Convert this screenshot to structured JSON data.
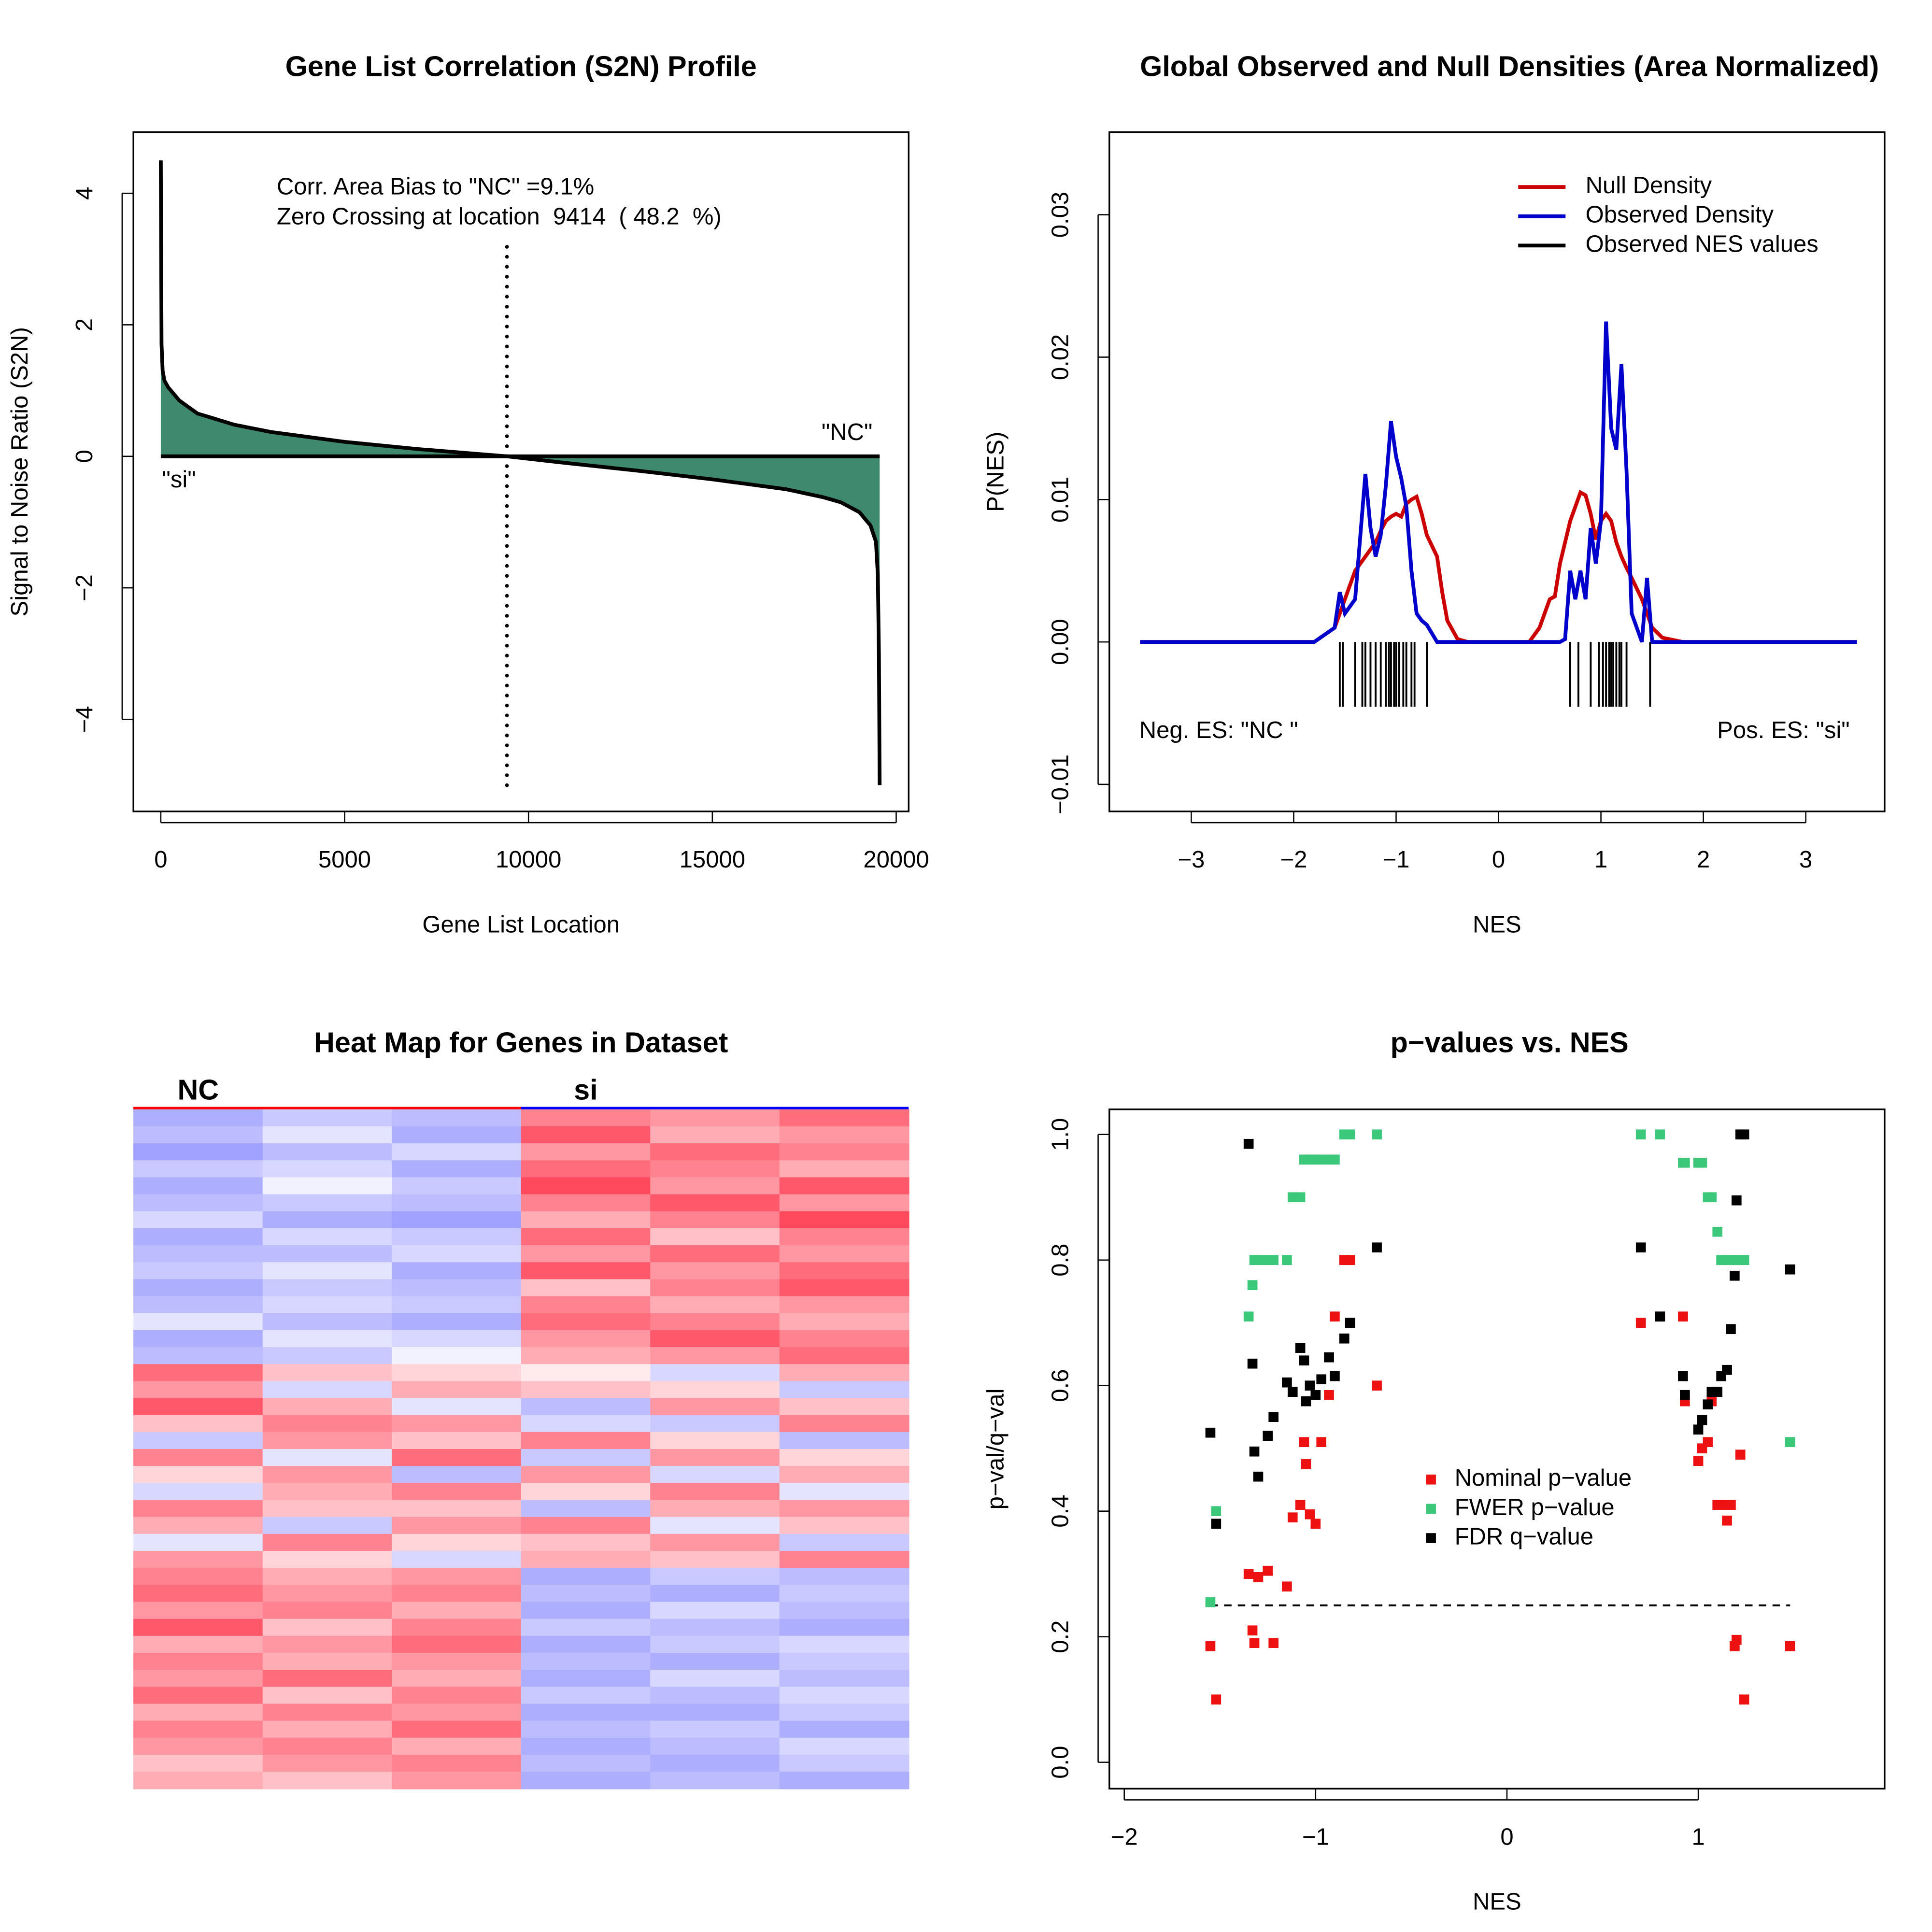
{
  "chart_data": [
    {
      "type": "area",
      "title": "Gene List Correlation (S2N) Profile",
      "x_label": "Gene List Location",
      "y_label": "Signal to Noise Ratio (S2N)",
      "annotations": [
        "Corr. Area Bias to \"NC\" =9.1%",
        "Zero Crossing at location  9414  ( 48.2  %)",
        "\"si\"",
        "\"NC\""
      ],
      "zero_crossing": 9414,
      "color": "#3f8a6e",
      "x": [
        0,
        20,
        50,
        100,
        200,
        500,
        1000,
        1300,
        2000,
        3000,
        5000,
        7000,
        9414,
        11000,
        13000,
        15000,
        17000,
        18000,
        18500,
        19000,
        19300,
        19450,
        19500,
        19530,
        19550
      ],
      "values": [
        4.5,
        1.7,
        1.3,
        1.15,
        1.05,
        0.85,
        0.65,
        0.6,
        0.48,
        0.37,
        0.22,
        0.11,
        0,
        -0.1,
        -0.22,
        -0.35,
        -0.5,
        -0.62,
        -0.7,
        -0.85,
        -1.05,
        -1.3,
        -1.8,
        -3,
        -5
      ],
      "xlim": [
        -746,
        20339
      ],
      "ylim": [
        -5.4,
        4.93
      ],
      "xticks": [
        0,
        5000,
        10000,
        15000,
        20000
      ],
      "yticks": [
        {
          "value": -4,
          "label": "−4"
        },
        {
          "value": -2,
          "label": "−2"
        },
        0,
        2,
        4
      ]
    },
    {
      "type": "line",
      "title": "Global Observed and Null Densities (Area Normalized)",
      "x_label": "NES",
      "y_label": "P(NES)",
      "annotations": [
        "Neg. ES: \"NC \"",
        "Pos. ES: \"si\""
      ],
      "x": [
        -3.5,
        -1.8,
        -1.6,
        -1.55,
        -1.5,
        -1.4,
        -1.3,
        -1.25,
        -1.2,
        -1.15,
        -1.1,
        -1.05,
        -1.0,
        -0.95,
        -0.9,
        -0.85,
        -0.8,
        -0.75,
        -0.7,
        -0.6,
        -0.55,
        -0.5,
        -0.4,
        -0.3,
        0.3,
        0.4,
        0.5,
        0.55,
        0.6,
        0.65,
        0.7,
        0.75,
        0.8,
        0.85,
        0.9,
        0.95,
        1.0,
        1.05,
        1.1,
        1.15,
        1.2,
        1.25,
        1.3,
        1.4,
        1.45,
        1.5,
        1.6,
        1.8,
        3.5
      ],
      "series": [
        {
          "name": "Null Density",
          "color": "#cc0000",
          "values": [
            0,
            0,
            0.001,
            0.002,
            0.003,
            0.005,
            0.006,
            0.0065,
            0.007,
            0.0078,
            0.0085,
            0.0088,
            0.009,
            0.0088,
            0.0097,
            0.01,
            0.0102,
            0.009,
            0.0075,
            0.006,
            0.0035,
            0.0015,
            0.0002,
            0,
            0,
            0.001,
            0.003,
            0.0032,
            0.0055,
            0.007,
            0.0085,
            0.0095,
            0.0105,
            0.0103,
            0.009,
            0.0072,
            0.0085,
            0.009,
            0.0085,
            0.007,
            0.006,
            0.0052,
            0.0045,
            0.003,
            0.002,
            0.001,
            0.0003,
            0,
            0
          ]
        },
        {
          "name": "Observed Density",
          "color": "#0000cc",
          "values": [
            0,
            0,
            0.001,
            0.0035,
            0.002,
            0.003,
            0.0118,
            0.008,
            0.006,
            0.0075,
            0.011,
            0.0155,
            0.013,
            0.0115,
            0.0095,
            0.005,
            0.002,
            0.0015,
            0.0012,
            0,
            0,
            0,
            0,
            0,
            0,
            0,
            0,
            0,
            0,
            0.0002,
            0.005,
            0.003,
            0.005,
            0.003,
            0.008,
            0.0055,
            0.0085,
            0.0225,
            0.015,
            0.0135,
            0.0195,
            0.012,
            0.002,
            0,
            0.0045,
            0,
            0,
            0,
            0
          ]
        }
      ],
      "rug": {
        "name": "Observed NES values",
        "color": "#000000",
        "values": [
          -1.55,
          -1.52,
          -1.4,
          -1.33,
          -1.3,
          -1.25,
          -1.2,
          -1.15,
          -1.1,
          -1.07,
          -1.05,
          -1.02,
          -1.0,
          -0.97,
          -0.93,
          -0.9,
          -0.85,
          -0.82,
          -0.7,
          0.7,
          0.78,
          0.9,
          0.98,
          1.02,
          1.05,
          1.08,
          1.1,
          1.12,
          1.15,
          1.18,
          1.2,
          1.25,
          1.48
        ]
      },
      "xlim": [
        -3.8,
        3.77
      ],
      "ylim": [
        -0.0119,
        0.0358
      ],
      "xticks": [
        {
          "value": -3,
          "label": "−3"
        },
        {
          "value": -2,
          "label": "−2"
        },
        {
          "value": -1,
          "label": "−1"
        },
        0,
        1,
        2,
        3
      ],
      "yticks": [
        {
          "value": -0.01,
          "label": "−0.01"
        },
        {
          "value": 0,
          "label": "0.00"
        },
        0.01,
        0.02,
        0.03
      ]
    },
    {
      "type": "heatmap",
      "title": "Heat Map for Genes in Dataset",
      "groups": [
        "NC",
        "si"
      ],
      "group_colors": [
        "#ff0000",
        "#0000ff"
      ],
      "low_color": "#8a8aff",
      "high_color": "#ff4a5e",
      "rows": [
        [
          -0.6,
          -0.4,
          -0.5,
          0.6,
          0.5,
          0.7
        ],
        [
          -0.5,
          -0.2,
          -0.6,
          0.8,
          0.4,
          0.5
        ],
        [
          -0.7,
          -0.5,
          -0.3,
          0.5,
          0.7,
          0.6
        ],
        [
          -0.4,
          -0.3,
          -0.6,
          0.7,
          0.6,
          0.4
        ],
        [
          -0.6,
          -0.1,
          -0.4,
          0.9,
          0.5,
          0.8
        ],
        [
          -0.5,
          -0.4,
          -0.5,
          0.6,
          0.8,
          0.5
        ],
        [
          -0.3,
          -0.6,
          -0.7,
          0.4,
          0.6,
          0.9
        ],
        [
          -0.6,
          -0.3,
          -0.4,
          0.7,
          0.3,
          0.6
        ],
        [
          -0.5,
          -0.5,
          -0.3,
          0.5,
          0.7,
          0.5
        ],
        [
          -0.4,
          -0.2,
          -0.6,
          0.8,
          0.5,
          0.7
        ],
        [
          -0.6,
          -0.4,
          -0.5,
          0.3,
          0.6,
          0.8
        ],
        [
          -0.5,
          -0.3,
          -0.4,
          0.6,
          0.4,
          0.5
        ],
        [
          -0.2,
          -0.5,
          -0.6,
          0.7,
          0.6,
          0.4
        ],
        [
          -0.6,
          -0.2,
          -0.3,
          0.5,
          0.8,
          0.6
        ],
        [
          -0.5,
          -0.4,
          -0.1,
          0.4,
          0.5,
          0.7
        ],
        [
          0.7,
          0.3,
          0.2,
          0.1,
          -0.3,
          0.4
        ],
        [
          0.5,
          -0.3,
          0.4,
          0.3,
          0.2,
          -0.4
        ],
        [
          0.8,
          0.4,
          -0.2,
          -0.5,
          0.5,
          0.3
        ],
        [
          0.3,
          0.6,
          0.5,
          -0.3,
          -0.4,
          0.6
        ],
        [
          -0.4,
          0.5,
          0.3,
          0.6,
          0.2,
          -0.5
        ],
        [
          0.6,
          -0.2,
          0.7,
          -0.4,
          0.5,
          0.2
        ],
        [
          0.2,
          0.5,
          -0.5,
          0.5,
          -0.3,
          0.4
        ],
        [
          -0.3,
          0.4,
          0.6,
          0.2,
          0.6,
          -0.2
        ],
        [
          0.6,
          0.3,
          0.3,
          -0.5,
          0.4,
          0.5
        ],
        [
          0.4,
          -0.4,
          0.5,
          0.6,
          -0.2,
          0.3
        ],
        [
          -0.2,
          0.6,
          0.2,
          0.3,
          0.5,
          -0.4
        ],
        [
          0.5,
          0.2,
          -0.3,
          0.4,
          0.3,
          0.6
        ],
        [
          0.6,
          0.4,
          0.5,
          -0.6,
          -0.4,
          -0.5
        ],
        [
          0.7,
          0.5,
          0.6,
          -0.5,
          -0.6,
          -0.4
        ],
        [
          0.5,
          0.6,
          0.4,
          -0.6,
          -0.3,
          -0.5
        ],
        [
          0.8,
          0.3,
          0.6,
          -0.4,
          -0.5,
          -0.6
        ],
        [
          0.4,
          0.5,
          0.7,
          -0.6,
          -0.4,
          -0.3
        ],
        [
          0.6,
          0.4,
          0.5,
          -0.5,
          -0.6,
          -0.4
        ],
        [
          0.5,
          0.7,
          0.4,
          -0.6,
          -0.3,
          -0.5
        ],
        [
          0.7,
          0.3,
          0.6,
          -0.4,
          -0.5,
          -0.3
        ],
        [
          0.4,
          0.6,
          0.5,
          -0.6,
          -0.6,
          -0.4
        ],
        [
          0.6,
          0.4,
          0.7,
          -0.5,
          -0.4,
          -0.6
        ],
        [
          0.5,
          0.6,
          0.4,
          -0.6,
          -0.5,
          -0.3
        ],
        [
          0.3,
          0.5,
          0.6,
          -0.5,
          -0.6,
          -0.4
        ],
        [
          0.4,
          0.3,
          0.5,
          -0.6,
          -0.5,
          -0.6
        ]
      ]
    },
    {
      "type": "scatter",
      "title": "p−values vs. NES",
      "x_label": "NES",
      "y_label": "p−val/q−val",
      "reference_line": 0.25,
      "x": [
        -1.55,
        -1.52,
        -1.35,
        -1.33,
        -1.32,
        -1.3,
        -1.25,
        -1.22,
        -1.15,
        -1.12,
        -1.08,
        -1.06,
        -1.05,
        -1.03,
        -1.0,
        -0.97,
        -0.93,
        -0.9,
        -0.85,
        -0.82,
        -0.68,
        0.7,
        0.8,
        0.92,
        0.93,
        1.0,
        1.02,
        1.05,
        1.07,
        1.1,
        1.12,
        1.15,
        1.17,
        1.19,
        1.2,
        1.22,
        1.24,
        1.48
      ],
      "series": [
        {
          "name": "Nominal p−value",
          "color": "#ee1111",
          "values": [
            0.185,
            0.1,
            0.3,
            0.21,
            0.19,
            0.295,
            0.305,
            0.19,
            0.28,
            0.39,
            0.41,
            0.51,
            0.475,
            0.395,
            0.38,
            0.51,
            0.585,
            0.71,
            0.8,
            0.8,
            0.6,
            0.7,
            0.71,
            0.71,
            0.575,
            0.48,
            0.5,
            0.51,
            0.575,
            0.41,
            0.41,
            0.385,
            0.41,
            0.185,
            0.195,
            0.49,
            0.1,
            0.185
          ]
        },
        {
          "name": "FWER p−value",
          "color": "#3cc87a",
          "values": [
            0.255,
            0.4,
            0.71,
            0.76,
            0.8,
            0.8,
            0.8,
            0.8,
            0.8,
            0.9,
            0.9,
            0.96,
            0.96,
            0.96,
            0.96,
            0.96,
            0.96,
            0.96,
            1.0,
            1.0,
            1.0,
            1.0,
            1.0,
            0.955,
            0.955,
            0.955,
            0.955,
            0.9,
            0.9,
            0.845,
            0.8,
            0.8,
            0.8,
            0.8,
            0.8,
            0.8,
            0.8,
            0.51
          ]
        },
        {
          "name": "FDR q−value",
          "color": "#000000",
          "values": [
            0.525,
            0.38,
            0.985,
            0.635,
            0.495,
            0.455,
            0.52,
            0.55,
            0.605,
            0.59,
            0.66,
            0.64,
            0.575,
            0.6,
            0.585,
            0.61,
            0.645,
            0.615,
            0.675,
            0.7,
            0.82,
            0.82,
            0.71,
            0.615,
            0.585,
            0.53,
            0.545,
            0.57,
            0.59,
            0.59,
            0.615,
            0.625,
            0.69,
            0.775,
            0.895,
            1.0,
            1.0,
            0.785
          ]
        }
      ],
      "xlim": [
        -2.078,
        1.974
      ],
      "ylim": [
        -0.042,
        1.04
      ],
      "xticks": [
        {
          "value": -2,
          "label": "−2"
        },
        {
          "value": -1,
          "label": "−1"
        },
        0,
        1
      ],
      "yticks": [
        {
          "value": 0,
          "label": "0.0"
        },
        0.2,
        0.4,
        0.6,
        0.8,
        {
          "value": 1,
          "label": "1.0"
        }
      ]
    }
  ]
}
